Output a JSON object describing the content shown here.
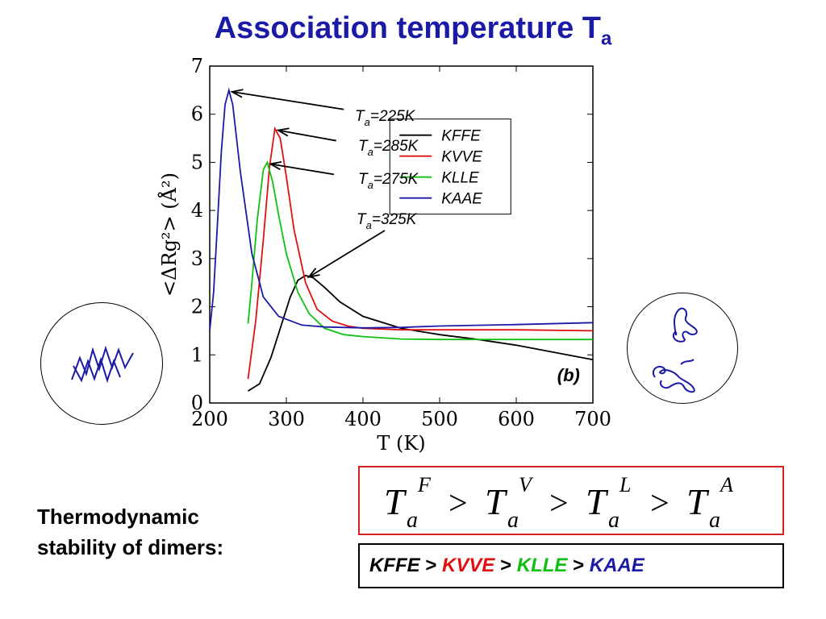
{
  "slide": {
    "title_main": "Association temperature T",
    "title_sub": "a",
    "stability_line1": "Thermodynamic",
    "stability_line2": "stability of dimers:"
  },
  "formula": {
    "terms": [
      {
        "base": "T",
        "sub": "a",
        "sup": "F"
      },
      {
        "base": "T",
        "sub": "a",
        "sup": "V"
      },
      {
        "base": "T",
        "sub": "a",
        "sup": "L"
      },
      {
        "base": "T",
        "sub": "a",
        "sup": "A"
      }
    ],
    "operator": ">"
  },
  "order": {
    "items": [
      {
        "label": "KFFE",
        "color": "#000000"
      },
      {
        "label": "KVVE",
        "color": "#e01010"
      },
      {
        "label": "KLLE",
        "color": "#10c010"
      },
      {
        "label": "KAAE",
        "color": "#1a1aa6"
      }
    ],
    "separator": ">"
  },
  "chart_data": {
    "type": "line",
    "xlabel": "T (K)",
    "ylabel": "<ΔRg²> (Å²)",
    "xlim": [
      200,
      700
    ],
    "ylim": [
      0,
      7
    ],
    "xticks": [
      200,
      300,
      400,
      500,
      600,
      700
    ],
    "yticks": [
      0,
      1,
      2,
      3,
      4,
      5,
      6,
      7
    ],
    "panel_label": "(b)",
    "legend_position": "top-right",
    "series": [
      {
        "name": "KFFE",
        "color": "#000000",
        "x": [
          250,
          265,
          280,
          295,
          305,
          315,
          325,
          335,
          350,
          370,
          400,
          450,
          500,
          550,
          600,
          650,
          700
        ],
        "y": [
          0.25,
          0.4,
          0.95,
          1.7,
          2.2,
          2.55,
          2.65,
          2.6,
          2.4,
          2.1,
          1.8,
          1.55,
          1.42,
          1.32,
          1.2,
          1.05,
          0.9
        ]
      },
      {
        "name": "KVVE",
        "color": "#e01010",
        "x": [
          250,
          260,
          270,
          278,
          285,
          292,
          300,
          310,
          325,
          340,
          360,
          380,
          400,
          450,
          500,
          600,
          700
        ],
        "y": [
          0.5,
          1.7,
          3.4,
          4.9,
          5.7,
          5.5,
          4.7,
          3.6,
          2.5,
          1.95,
          1.7,
          1.6,
          1.55,
          1.52,
          1.52,
          1.52,
          1.5
        ]
      },
      {
        "name": "KLLE",
        "color": "#10c010",
        "x": [
          250,
          255,
          262,
          270,
          275,
          282,
          290,
          300,
          315,
          330,
          350,
          375,
          400,
          450,
          500,
          600,
          700
        ],
        "y": [
          1.65,
          2.5,
          3.8,
          4.85,
          5.0,
          4.6,
          3.9,
          3.1,
          2.3,
          1.85,
          1.55,
          1.42,
          1.38,
          1.33,
          1.32,
          1.32,
          1.32
        ]
      },
      {
        "name": "KAAE",
        "color": "#1a1aa6",
        "x": [
          200,
          205,
          210,
          215,
          220,
          225,
          230,
          240,
          255,
          270,
          290,
          320,
          350,
          400,
          450,
          500,
          600,
          700
        ],
        "y": [
          1.5,
          2.3,
          3.7,
          5.2,
          6.2,
          6.5,
          6.2,
          4.8,
          3.1,
          2.2,
          1.8,
          1.62,
          1.58,
          1.56,
          1.57,
          1.6,
          1.63,
          1.67
        ]
      }
    ],
    "annotations": [
      {
        "label": "T",
        "sub": "a",
        "value": "=225K",
        "target": [
          225,
          6.5
        ]
      },
      {
        "label": "T",
        "sub": "a",
        "value": "=285K",
        "target": [
          285,
          5.7
        ]
      },
      {
        "label": "T",
        "sub": "a",
        "value": "=275K",
        "target": [
          275,
          5.0
        ]
      },
      {
        "label": "T",
        "sub": "a",
        "value": "=325K",
        "target": [
          325,
          2.65
        ]
      }
    ]
  }
}
